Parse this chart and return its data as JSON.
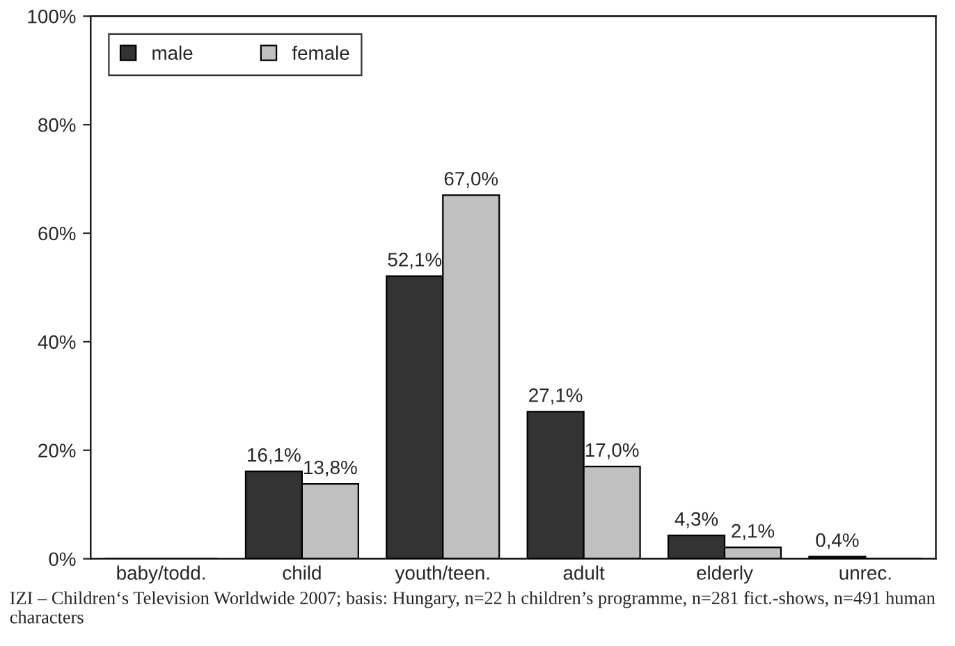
{
  "chart_data": {
    "type": "bar",
    "categories": [
      "baby/todd.",
      "child",
      "youth/teen.",
      "adult",
      "elderly",
      "unrec."
    ],
    "series": [
      {
        "name": "male",
        "color": "#333333",
        "values": [
          0,
          16.1,
          52.1,
          27.1,
          4.3,
          0.4
        ],
        "value_labels": [
          null,
          "16,1%",
          "52,1%",
          "27,1%",
          "4,3%",
          "0,4%"
        ]
      },
      {
        "name": "female",
        "color": "#c0c0c0",
        "values": [
          0,
          13.8,
          67.0,
          17.0,
          2.1,
          0
        ],
        "value_labels": [
          null,
          "13,8%",
          "67,0%",
          "17,0%",
          "2,1%",
          null
        ]
      }
    ],
    "ylim": [
      0,
      100
    ],
    "yticks": [
      {
        "value": 0,
        "label": "0%"
      },
      {
        "value": 20,
        "label": "20%"
      },
      {
        "value": 40,
        "label": "40%"
      },
      {
        "value": 60,
        "label": "60%"
      },
      {
        "value": 80,
        "label": "80%"
      },
      {
        "value": 100,
        "label": "100%"
      }
    ],
    "grid": false,
    "legend": "top left",
    "annotations": [
      "IZI – Children‘s Television Worldwide 2007; basis: Hungary, n=22 h children’s programme, n=281 fict.-shows, n=491 human characters"
    ]
  }
}
